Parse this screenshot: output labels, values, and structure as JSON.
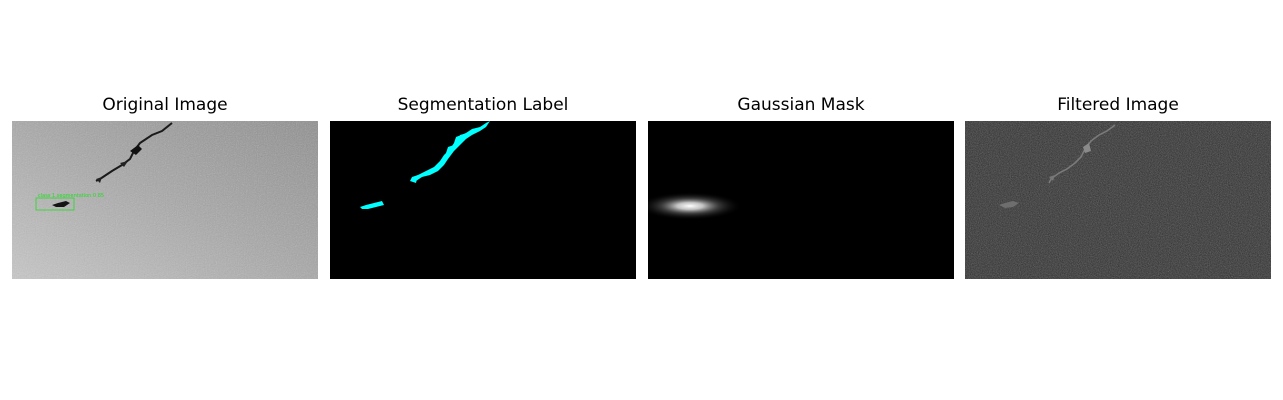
{
  "panels": [
    {
      "title": "Original Image"
    },
    {
      "title": "Segmentation Label"
    },
    {
      "title": "Gaussian Mask"
    },
    {
      "title": "Filtered Image"
    }
  ],
  "detection": {
    "label": "class 1  segmentation 0.85",
    "color": "#22dd22"
  },
  "colors": {
    "segmentation": "#00ffff",
    "background_dark": "#000000",
    "filtered_background": "#262626"
  }
}
